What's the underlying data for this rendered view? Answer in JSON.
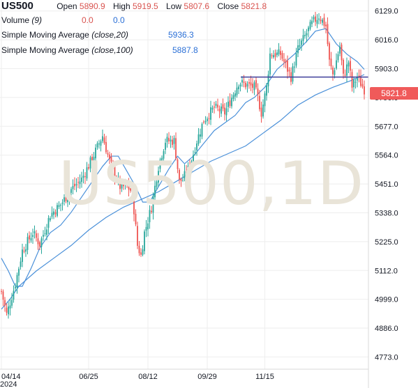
{
  "header": {
    "symbol": "US500",
    "open_label": "Open",
    "open": "5890.9",
    "high_label": "High",
    "high": "5919.5",
    "low_label": "Low",
    "low": "5807.6",
    "close_label": "Close",
    "close": "5821.8",
    "volume_label": "Volume",
    "volume_param": "(9)",
    "volume_v1": "0.0",
    "volume_v2": "0.0",
    "sma20_label": "Simple Moving Average",
    "sma20_param": "(close,20)",
    "sma20_value": "5936.3",
    "sma100_label": "Simple Moving Average",
    "sma100_param": "(close,100)",
    "sma100_value": "5887.8"
  },
  "watermark": "US500,1D",
  "last_price": "5821.8",
  "colors": {
    "up": "#26a69a",
    "down": "#ef5350",
    "sma": "#4a90d9",
    "level": "#3f3f9a",
    "tag": "#f05a5a"
  },
  "chart_data": {
    "type": "candlestick",
    "y_ticks": [
      4773.0,
      4886.0,
      4999.0,
      5112.0,
      5225.0,
      5338.0,
      5451.0,
      5564.0,
      5677.0,
      5790.0,
      5903.0,
      6016.0,
      6129.0
    ],
    "ylim": [
      4725,
      6172
    ],
    "x_ticks": [
      {
        "label": "04/14",
        "i": 0
      },
      {
        "label": "06/25",
        "i": 50
      },
      {
        "label": "08/12",
        "i": 84
      },
      {
        "label": "09/29",
        "i": 118
      },
      {
        "label": "11/15",
        "i": 151
      }
    ],
    "year_label": "2024",
    "horizontal_level": 5870,
    "anchors": [
      [
        0,
        5030
      ],
      [
        3,
        4940
      ],
      [
        8,
        5060
      ],
      [
        12,
        5190
      ],
      [
        18,
        5260
      ],
      [
        22,
        5215
      ],
      [
        28,
        5330
      ],
      [
        34,
        5370
      ],
      [
        40,
        5430
      ],
      [
        46,
        5470
      ],
      [
        52,
        5550
      ],
      [
        58,
        5640
      ],
      [
        62,
        5540
      ],
      [
        68,
        5440
      ],
      [
        72,
        5440
      ],
      [
        75,
        5420
      ],
      [
        78,
        5210
      ],
      [
        80,
        5170
      ],
      [
        82,
        5260
      ],
      [
        86,
        5360
      ],
      [
        90,
        5520
      ],
      [
        94,
        5620
      ],
      [
        99,
        5620
      ],
      [
        102,
        5460
      ],
      [
        104,
        5470
      ],
      [
        108,
        5520
      ],
      [
        112,
        5620
      ],
      [
        116,
        5700
      ],
      [
        122,
        5750
      ],
      [
        128,
        5730
      ],
      [
        132,
        5790
      ],
      [
        136,
        5850
      ],
      [
        140,
        5840
      ],
      [
        145,
        5830
      ],
      [
        147,
        5790
      ],
      [
        149,
        5730
      ],
      [
        152,
        5830
      ],
      [
        154,
        5960
      ],
      [
        160,
        5960
      ],
      [
        166,
        5870
      ],
      [
        170,
        5980
      ],
      [
        178,
        6080
      ],
      [
        182,
        6110
      ],
      [
        186,
        6070
      ],
      [
        188,
        5930
      ],
      [
        190,
        5880
      ],
      [
        194,
        5990
      ],
      [
        196,
        5870
      ],
      [
        199,
        5930
      ],
      [
        201,
        5830
      ],
      [
        204,
        5870
      ],
      [
        208,
        5821.8
      ]
    ],
    "sma20": [
      [
        0,
        5160
      ],
      [
        4,
        5110
      ],
      [
        8,
        5050
      ],
      [
        12,
        5050
      ],
      [
        17,
        5120
      ],
      [
        22,
        5200
      ],
      [
        28,
        5260
      ],
      [
        34,
        5290
      ],
      [
        40,
        5340
      ],
      [
        46,
        5400
      ],
      [
        52,
        5460
      ],
      [
        58,
        5520
      ],
      [
        63,
        5560
      ],
      [
        67,
        5560
      ],
      [
        72,
        5500
      ],
      [
        77,
        5440
      ],
      [
        81,
        5380
      ],
      [
        85,
        5380
      ],
      [
        90,
        5440
      ],
      [
        96,
        5510
      ],
      [
        101,
        5560
      ],
      [
        105,
        5530
      ],
      [
        110,
        5560
      ],
      [
        116,
        5610
      ],
      [
        122,
        5660
      ],
      [
        128,
        5690
      ],
      [
        134,
        5720
      ],
      [
        140,
        5770
      ],
      [
        145,
        5790
      ],
      [
        151,
        5830
      ],
      [
        158,
        5900
      ],
      [
        163,
        5930
      ],
      [
        168,
        5960
      ],
      [
        175,
        6010
      ],
      [
        180,
        6050
      ],
      [
        186,
        6060
      ],
      [
        192,
        6000
      ],
      [
        198,
        5960
      ],
      [
        204,
        5930
      ],
      [
        208,
        5900
      ]
    ],
    "sma100": [
      [
        0,
        4960
      ],
      [
        5,
        5000
      ],
      [
        10,
        5050
      ],
      [
        20,
        5110
      ],
      [
        30,
        5160
      ],
      [
        40,
        5210
      ],
      [
        50,
        5270
      ],
      [
        60,
        5320
      ],
      [
        70,
        5360
      ],
      [
        80,
        5390
      ],
      [
        90,
        5420
      ],
      [
        100,
        5460
      ],
      [
        110,
        5500
      ],
      [
        120,
        5540
      ],
      [
        130,
        5570
      ],
      [
        140,
        5600
      ],
      [
        150,
        5650
      ],
      [
        160,
        5700
      ],
      [
        170,
        5760
      ],
      [
        180,
        5800
      ],
      [
        190,
        5830
      ],
      [
        200,
        5855
      ],
      [
        208,
        5880
      ]
    ]
  }
}
